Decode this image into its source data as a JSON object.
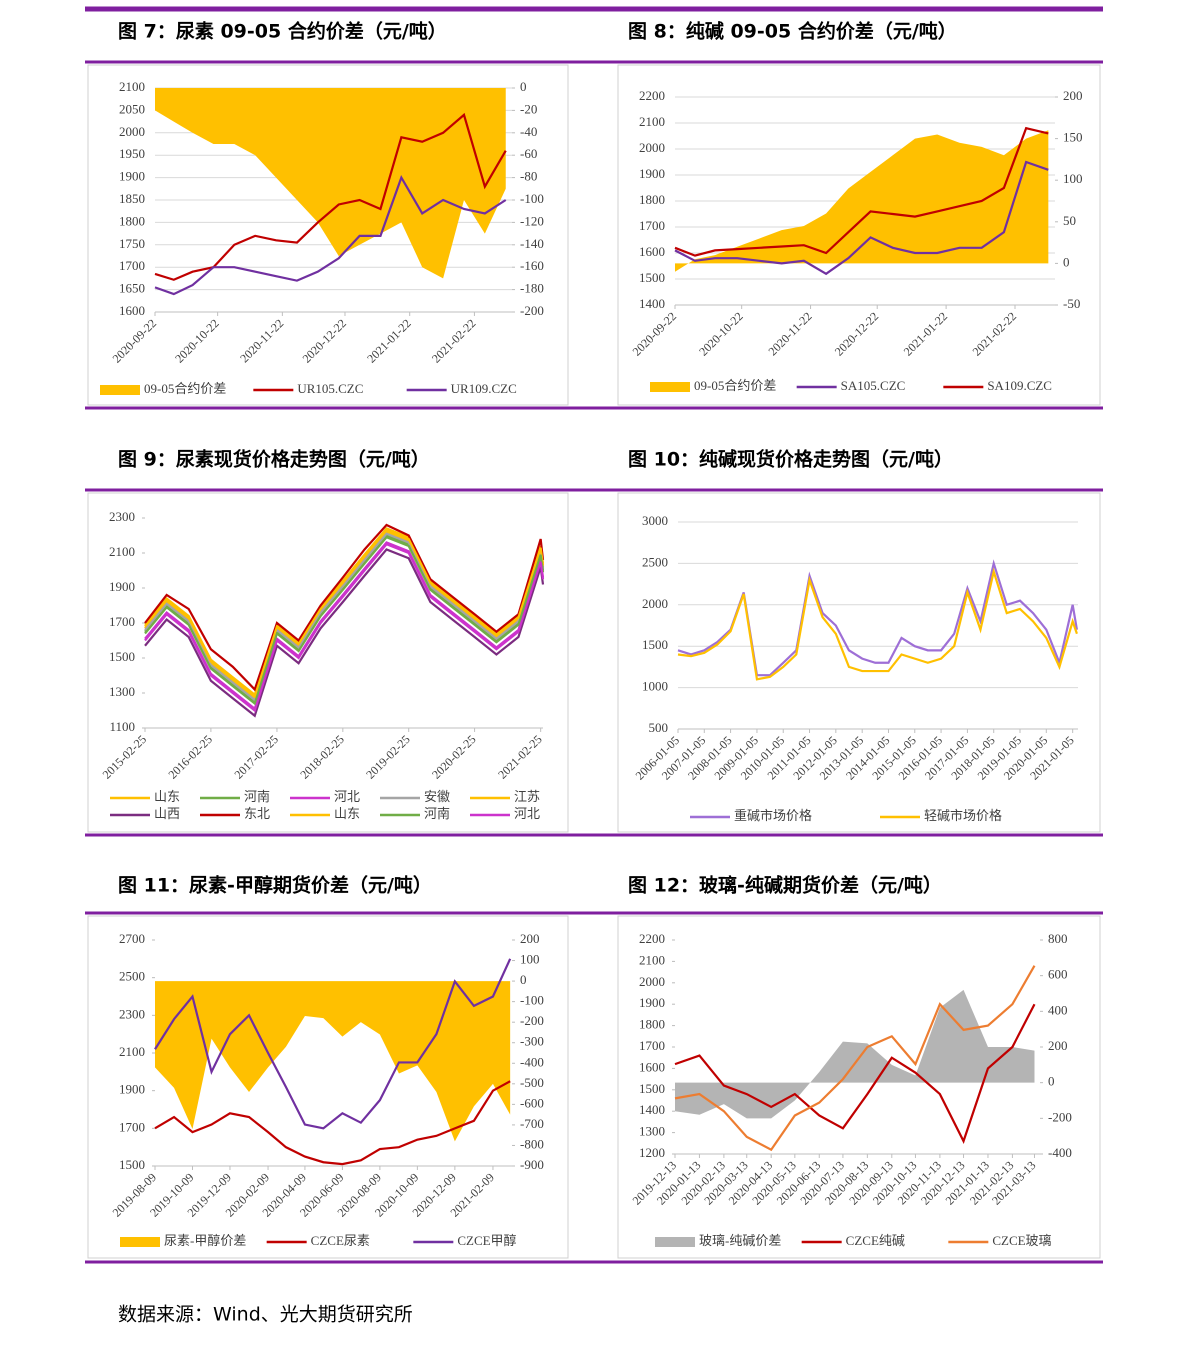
{
  "source": "数据来源：Wind、光大期货研究所",
  "chart_data": [
    {
      "type": "line",
      "title": "图 7：尿素 09-05 合约价差（元/吨）",
      "grid": true,
      "x": [
        "2020-09-22",
        "2020-10-01",
        "2020-10-10",
        "2020-10-20",
        "2020-10-30",
        "2020-11-09",
        "2020-11-19",
        "2020-11-29",
        "2020-12-09",
        "2020-12-19",
        "2020-12-29",
        "2021-01-08",
        "2021-01-18",
        "2021-01-28",
        "2021-02-07",
        "2021-02-17",
        "2021-02-27",
        "2021-03-09"
      ],
      "xlim": [
        "2020-09-22",
        "2021-03-12"
      ],
      "xticks": [
        "2020-09-22",
        "2020-10-22",
        "2020-11-22",
        "2020-12-22",
        "2021-01-22",
        "2021-02-22"
      ],
      "ylim": [
        1600,
        2100
      ],
      "yticks": [
        1600,
        1650,
        1700,
        1750,
        1800,
        1850,
        1900,
        1950,
        2000,
        2050,
        2100
      ],
      "y2lim": [
        -200,
        0
      ],
      "y2ticks": [
        -200,
        -180,
        -160,
        -140,
        -120,
        -100,
        -80,
        -60,
        -40,
        -20,
        0
      ],
      "series": [
        {
          "name": "09-05合约价差",
          "type": "area",
          "axis": "y2",
          "color": "#ffc000",
          "values": [
            -20,
            -30,
            -40,
            -50,
            -50,
            -60,
            -80,
            -100,
            -120,
            -150,
            -140,
            -130,
            -120,
            -160,
            -170,
            -100,
            -130,
            -90
          ]
        },
        {
          "name": "UR105.CZC",
          "color": "#c00000",
          "values": [
            1685,
            1672,
            1690,
            1700,
            1750,
            1770,
            1760,
            1755,
            1800,
            1840,
            1850,
            1830,
            1990,
            1980,
            2000,
            2040,
            1880,
            1960
          ]
        },
        {
          "name": "UR109.CZC",
          "color": "#7030a0",
          "values": [
            1655,
            1640,
            1660,
            1700,
            1700,
            1690,
            1680,
            1670,
            1690,
            1720,
            1770,
            1770,
            1900,
            1820,
            1850,
            1830,
            1820,
            1850
          ]
        }
      ]
    },
    {
      "type": "line",
      "title": "图 8：纯碱 09-05 合约价差（元/吨）",
      "grid": true,
      "x": [
        "2020-09-22",
        "2020-10-01",
        "2020-10-10",
        "2020-10-20",
        "2020-10-30",
        "2020-11-09",
        "2020-11-19",
        "2020-11-29",
        "2020-12-09",
        "2020-12-19",
        "2020-12-29",
        "2021-01-08",
        "2021-01-18",
        "2021-01-28",
        "2021-02-07",
        "2021-02-17",
        "2021-02-27",
        "2021-03-09"
      ],
      "xlim": [
        "2020-09-22",
        "2021-03-12"
      ],
      "xticks": [
        "2020-09-22",
        "2020-10-22",
        "2020-11-22",
        "2020-12-22",
        "2021-01-22",
        "2021-02-22"
      ],
      "ylim": [
        1400,
        2200
      ],
      "yticks": [
        1400,
        1500,
        1600,
        1700,
        1800,
        1900,
        2000,
        2100,
        2200
      ],
      "y2lim": [
        -50,
        200
      ],
      "y2ticks": [
        -50,
        0,
        50,
        100,
        150,
        200
      ],
      "series": [
        {
          "name": "09-05合约价差",
          "type": "area",
          "axis": "y2",
          "color": "#ffc000",
          "values": [
            -10,
            5,
            10,
            20,
            30,
            40,
            45,
            60,
            90,
            110,
            130,
            150,
            155,
            145,
            140,
            130,
            150,
            160
          ]
        },
        {
          "name": "SA105.CZC",
          "color": "#7030a0",
          "values": [
            1610,
            1570,
            1580,
            1580,
            1570,
            1560,
            1570,
            1520,
            1580,
            1660,
            1620,
            1600,
            1600,
            1620,
            1620,
            1680,
            1950,
            1920
          ]
        },
        {
          "name": "SA109.CZC",
          "color": "#c00000",
          "values": [
            1620,
            1590,
            1610,
            1615,
            1620,
            1625,
            1630,
            1600,
            1680,
            1760,
            1750,
            1740,
            1760,
            1780,
            1800,
            1850,
            2080,
            2060
          ]
        }
      ]
    },
    {
      "type": "line",
      "title": "图 9：尿素现货价格走势图（元/吨）",
      "grid": false,
      "x": [
        "2015-02-25",
        "2015-06-25",
        "2015-10-25",
        "2016-02-25",
        "2016-06-25",
        "2016-10-25",
        "2017-02-25",
        "2017-06-25",
        "2017-10-25",
        "2018-02-25",
        "2018-06-25",
        "2018-10-25",
        "2019-02-25",
        "2019-06-25",
        "2019-10-25",
        "2020-02-25",
        "2020-06-25",
        "2020-10-25",
        "2021-02-25",
        "2021-03-10"
      ],
      "xlim": [
        "2015-02-25",
        "2021-03-10"
      ],
      "xticks": [
        "2015-02-25",
        "2016-02-25",
        "2017-02-25",
        "2018-02-25",
        "2019-02-25",
        "2020-02-25",
        "2021-02-25"
      ],
      "ylim": [
        1100,
        2300
      ],
      "yticks": [
        1100,
        1300,
        1500,
        1700,
        1900,
        2100,
        2300
      ],
      "series": [
        {
          "name": "山东",
          "color": "#ffc000",
          "values": [
            1670,
            1820,
            1720,
            1470,
            1370,
            1270,
            1670,
            1570,
            1770,
            1920,
            2070,
            2220,
            2170,
            1920,
            1820,
            1720,
            1620,
            1720,
            2120,
            2020
          ]
        },
        {
          "name": "河南",
          "color": "#70ad47",
          "values": [
            1650,
            1800,
            1700,
            1450,
            1350,
            1250,
            1650,
            1550,
            1750,
            1900,
            2050,
            2200,
            2150,
            1900,
            1800,
            1700,
            1600,
            1700,
            2100,
            2000
          ]
        },
        {
          "name": "河北",
          "color": "#cc33cc",
          "values": [
            1610,
            1760,
            1660,
            1410,
            1310,
            1210,
            1610,
            1510,
            1710,
            1860,
            2010,
            2160,
            2110,
            1860,
            1760,
            1660,
            1560,
            1660,
            2060,
            1960
          ]
        },
        {
          "name": "安徽",
          "color": "#a5a5a5",
          "values": [
            1660,
            1810,
            1710,
            1460,
            1360,
            1260,
            1660,
            1560,
            1760,
            1910,
            2060,
            2210,
            2160,
            1910,
            1810,
            1710,
            1610,
            1710,
            2110,
            2010
          ]
        },
        {
          "name": "江苏",
          "color": "#ffc000",
          "values": [
            1690,
            1840,
            1740,
            1490,
            1390,
            1290,
            1690,
            1590,
            1790,
            1940,
            2090,
            2240,
            2190,
            1940,
            1840,
            1740,
            1640,
            1740,
            2140,
            2040
          ]
        },
        {
          "name": "山西",
          "color": "#7b2c80",
          "values": [
            1570,
            1720,
            1620,
            1370,
            1270,
            1170,
            1570,
            1470,
            1670,
            1820,
            1970,
            2120,
            2070,
            1820,
            1720,
            1620,
            1520,
            1620,
            2020,
            1920
          ]
        },
        {
          "name": "东北",
          "color": "#c00000",
          "values": [
            1700,
            1860,
            1780,
            1550,
            1450,
            1320,
            1700,
            1600,
            1800,
            1960,
            2120,
            2260,
            2200,
            1950,
            1850,
            1750,
            1650,
            1750,
            2180,
            2060
          ]
        },
        {
          "name": "山东",
          "color": "#ffc000",
          "values": [
            1680,
            1830,
            1730,
            1480,
            1380,
            1280,
            1680,
            1580,
            1780,
            1930,
            2080,
            2230,
            2180,
            1930,
            1830,
            1730,
            1630,
            1730,
            2130,
            2030
          ]
        },
        {
          "name": "河南",
          "color": "#70ad47",
          "values": [
            1640,
            1790,
            1690,
            1440,
            1340,
            1240,
            1640,
            1540,
            1740,
            1890,
            2040,
            2190,
            2140,
            1890,
            1790,
            1690,
            1590,
            1690,
            2090,
            1990
          ]
        },
        {
          "name": "河北",
          "color": "#cc33cc",
          "values": [
            1600,
            1750,
            1650,
            1400,
            1300,
            1200,
            1600,
            1500,
            1700,
            1850,
            2000,
            2150,
            2100,
            1850,
            1750,
            1650,
            1550,
            1650,
            2050,
            1950
          ]
        }
      ]
    },
    {
      "type": "line",
      "title": "图 10：纯碱现货价格走势图（元/吨）",
      "grid": true,
      "x": [
        "2006-01-05",
        "2006-07-05",
        "2007-01-05",
        "2007-07-05",
        "2008-01-05",
        "2008-07-05",
        "2009-01-05",
        "2009-07-05",
        "2010-01-05",
        "2010-07-05",
        "2011-01-05",
        "2011-07-05",
        "2012-01-05",
        "2012-07-05",
        "2013-01-05",
        "2013-07-05",
        "2014-01-05",
        "2014-07-05",
        "2015-01-05",
        "2015-07-05",
        "2016-01-05",
        "2016-07-05",
        "2017-01-05",
        "2017-07-05",
        "2018-01-05",
        "2018-07-05",
        "2019-01-05",
        "2019-07-05",
        "2020-01-05",
        "2020-07-05",
        "2021-01-05",
        "2021-03-05"
      ],
      "xlim": [
        "2006-01-05",
        "2021-03-20"
      ],
      "xticks": [
        "2006-01-05",
        "2007-01-05",
        "2008-01-05",
        "2009-01-05",
        "2010-01-05",
        "2011-01-05",
        "2012-01-05",
        "2013-01-05",
        "2014-01-05",
        "2015-01-05",
        "2016-01-05",
        "2017-01-05",
        "2018-01-05",
        "2019-01-05",
        "2020-01-05",
        "2021-01-05"
      ],
      "ylim": [
        500,
        3000
      ],
      "yticks": [
        500,
        1000,
        1500,
        2000,
        2500,
        3000
      ],
      "series": [
        {
          "name": "重碱市场价格",
          "color": "#9e6fd6",
          "values": [
            1450,
            1400,
            1450,
            1550,
            1700,
            2150,
            1150,
            1150,
            1300,
            1450,
            2350,
            1900,
            1750,
            1450,
            1350,
            1300,
            1300,
            1600,
            1500,
            1450,
            1450,
            1650,
            2200,
            1800,
            2500,
            2000,
            2050,
            1900,
            1700,
            1300,
            2000,
            1700
          ]
        },
        {
          "name": "轻碱市场价格",
          "color": "#ffc000",
          "values": [
            1400,
            1380,
            1420,
            1520,
            1680,
            2130,
            1100,
            1130,
            1250,
            1400,
            2300,
            1850,
            1650,
            1250,
            1200,
            1200,
            1200,
            1400,
            1350,
            1300,
            1350,
            1500,
            2150,
            1700,
            2400,
            1900,
            1950,
            1800,
            1600,
            1250,
            1800,
            1650
          ]
        }
      ]
    },
    {
      "type": "line",
      "title": "图 11：尿素-甲醇期货价差（元/吨）",
      "grid": false,
      "x": [
        "2019-08-09",
        "2019-09-09",
        "2019-10-09",
        "2019-11-09",
        "2019-12-09",
        "2020-01-09",
        "2020-02-09",
        "2020-03-09",
        "2020-04-09",
        "2020-05-09",
        "2020-06-09",
        "2020-07-09",
        "2020-08-09",
        "2020-09-09",
        "2020-10-09",
        "2020-11-09",
        "2020-12-09",
        "2021-01-09",
        "2021-02-09",
        "2021-03-09"
      ],
      "xlim": [
        "2019-08-09",
        "2021-03-12"
      ],
      "xticks": [
        "2019-08-09",
        "2019-10-09",
        "2019-12-09",
        "2020-02-09",
        "2020-04-09",
        "2020-06-09",
        "2020-08-09",
        "2020-10-09",
        "2020-12-09",
        "2021-02-09"
      ],
      "ylim": [
        1500,
        2700
      ],
      "yticks": [
        1500,
        1700,
        1900,
        2100,
        2300,
        2500,
        2700
      ],
      "y2lim": [
        -900,
        200
      ],
      "y2ticks": [
        -900,
        -800,
        -700,
        -600,
        -500,
        -400,
        -300,
        -200,
        -100,
        0,
        100,
        200
      ],
      "series": [
        {
          "name": "尿素-甲醇价差",
          "type": "area",
          "axis": "y2",
          "color": "#ffc000",
          "values": [
            -420,
            -520,
            -720,
            -280,
            -420,
            -540,
            -420,
            -320,
            -170,
            -180,
            -270,
            -200,
            -260,
            -450,
            -410,
            -540,
            -780,
            -610,
            -500,
            -650
          ]
        },
        {
          "name": "CZCE尿素",
          "color": "#c00000",
          "values": [
            1700,
            1760,
            1680,
            1720,
            1780,
            1760,
            1680,
            1600,
            1550,
            1520,
            1510,
            1530,
            1590,
            1600,
            1640,
            1660,
            1700,
            1740,
            1900,
            1950
          ]
        },
        {
          "name": "CZCE甲醇",
          "color": "#7030a0",
          "values": [
            2120,
            2280,
            2400,
            2000,
            2200,
            2300,
            2100,
            1920,
            1720,
            1700,
            1780,
            1730,
            1850,
            2050,
            2050,
            2200,
            2480,
            2350,
            2400,
            2600
          ]
        }
      ]
    },
    {
      "type": "line",
      "title": "图 12：玻璃-纯碱期货价差（元/吨）",
      "grid": false,
      "x": [
        "2019-12-13",
        "2020-01-13",
        "2020-02-13",
        "2020-03-13",
        "2020-04-13",
        "2020-05-13",
        "2020-06-13",
        "2020-07-13",
        "2020-08-13",
        "2020-09-13",
        "2020-10-13",
        "2020-11-13",
        "2020-12-13",
        "2021-01-13",
        "2021-02-13",
        "2021-03-13"
      ],
      "xlim": [
        "2019-12-13",
        "2021-03-20"
      ],
      "xticks": [
        "2019-12-13",
        "2020-01-13",
        "2020-02-13",
        "2020-03-13",
        "2020-04-13",
        "2020-05-13",
        "2020-06-13",
        "2020-07-13",
        "2020-08-13",
        "2020-09-13",
        "2020-10-13",
        "2020-11-13",
        "2020-12-13",
        "2021-01-13",
        "2021-02-13",
        "2021-03-13"
      ],
      "ylim": [
        1200,
        2200
      ],
      "yticks": [
        1200,
        1300,
        1400,
        1500,
        1600,
        1700,
        1800,
        1900,
        2000,
        2100,
        2200
      ],
      "y2lim": [
        -400,
        800
      ],
      "y2ticks": [
        -400,
        -200,
        0,
        200,
        400,
        600,
        800
      ],
      "series": [
        {
          "name": "玻璃-纯碱价差",
          "type": "area",
          "axis": "y2",
          "color": "#b4b4b4",
          "values": [
            -160,
            -180,
            -120,
            -200,
            -200,
            -100,
            60,
            230,
            220,
            100,
            40,
            420,
            520,
            200,
            200,
            180
          ]
        },
        {
          "name": "CZCE纯碱",
          "color": "#c00000",
          "values": [
            1620,
            1660,
            1520,
            1480,
            1420,
            1480,
            1380,
            1320,
            1480,
            1650,
            1580,
            1480,
            1260,
            1600,
            1700,
            1900
          ]
        },
        {
          "name": "CZCE玻璃",
          "color": "#ed7d31",
          "values": [
            1460,
            1480,
            1400,
            1280,
            1220,
            1380,
            1440,
            1550,
            1700,
            1750,
            1620,
            1900,
            1780,
            1800,
            1900,
            2080
          ]
        }
      ]
    }
  ]
}
